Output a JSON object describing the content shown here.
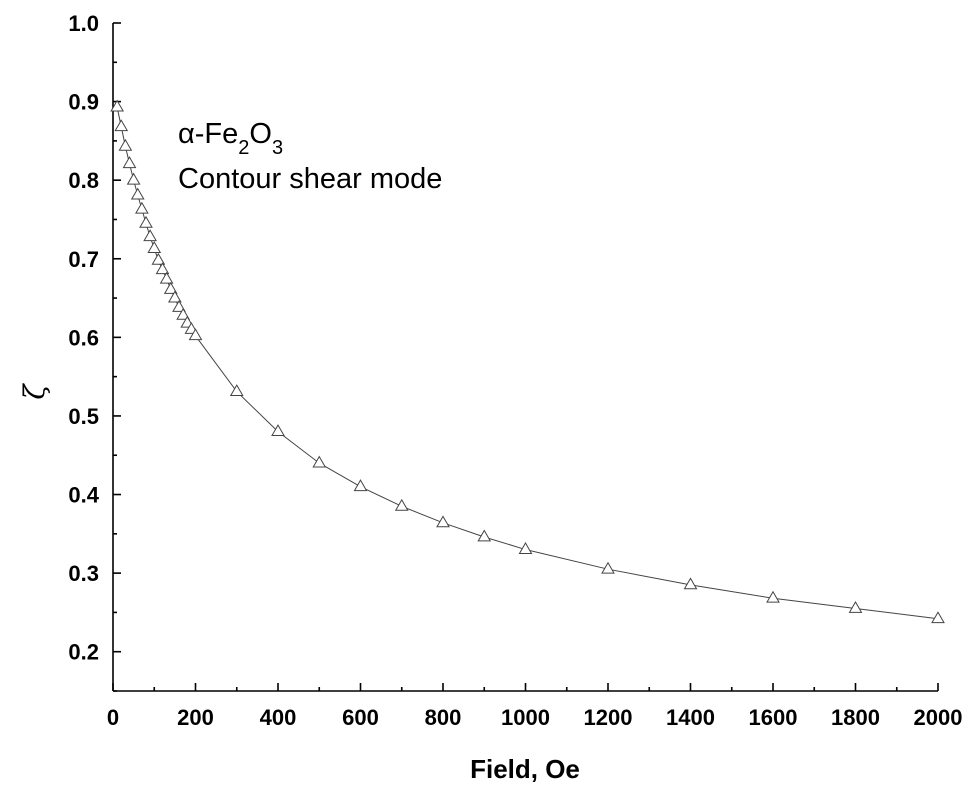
{
  "chart_data": {
    "type": "scatter",
    "title": "",
    "xlabel": "Field, Oe",
    "ylabel": "ζ",
    "xlim": [
      0,
      2000
    ],
    "ylim": [
      0.15,
      1.0
    ],
    "xticks": [
      0,
      200,
      400,
      600,
      800,
      1000,
      1200,
      1400,
      1600,
      1800,
      2000
    ],
    "yticks": [
      0.2,
      0.3,
      0.4,
      0.5,
      0.6,
      0.7,
      0.8,
      0.9,
      1.0
    ],
    "xtick_labels": [
      "0",
      "200",
      "400",
      "600",
      "800",
      "1000",
      "1200",
      "1400",
      "1600",
      "1800",
      "2000"
    ],
    "ytick_labels": [
      "0.2",
      "0.3",
      "0.4",
      "0.5",
      "0.6",
      "0.7",
      "0.8",
      "0.9",
      "1.0"
    ],
    "grid": false,
    "marker": "open-triangle",
    "connected": true,
    "annotation": {
      "line1_prefix": "α-Fe",
      "line1_sub1": "2",
      "line1_mid": "O",
      "line1_sub2": "3",
      "line2": "Contour shear mode"
    },
    "series": [
      {
        "x": [
          10,
          20,
          30,
          40,
          50,
          60,
          70,
          80,
          90,
          100,
          110,
          120,
          130,
          140,
          150,
          160,
          170,
          180,
          190,
          200,
          300,
          400,
          500,
          600,
          700,
          800,
          900,
          1000,
          1200,
          1400,
          1600,
          1800,
          2000
        ],
        "y": [
          0.893,
          0.868,
          0.843,
          0.821,
          0.8,
          0.781,
          0.763,
          0.745,
          0.728,
          0.713,
          0.698,
          0.686,
          0.674,
          0.661,
          0.65,
          0.638,
          0.628,
          0.618,
          0.61,
          0.602,
          0.531,
          0.48,
          0.44,
          0.41,
          0.385,
          0.364,
          0.346,
          0.33,
          0.305,
          0.285,
          0.268,
          0.255,
          0.242
        ]
      }
    ]
  }
}
